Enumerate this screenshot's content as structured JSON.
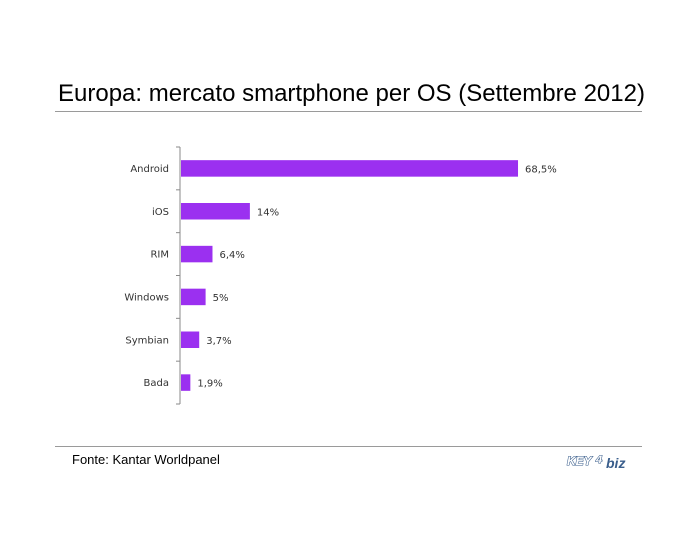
{
  "title": "Europa: mercato smartphone per OS (Settembre 2012)",
  "source": "Fonte: Kantar Worldpanel",
  "logo": {
    "text": "KEY4biz",
    "key_text": "KEY",
    "four_text": "4",
    "biz_text": "biz",
    "color": "#3a5e8c"
  },
  "chart_data": {
    "type": "bar",
    "orientation": "horizontal",
    "title": "Europa: mercato smartphone per OS (Settembre 2012)",
    "categories": [
      "Android",
      "iOS",
      "RIM",
      "Windows",
      "Symbian",
      "Bada"
    ],
    "values": [
      68.5,
      14,
      6.4,
      5,
      3.7,
      1.9
    ],
    "labels": [
      "68,5%",
      "14%",
      "6,4%",
      "5%",
      "3,7%",
      "1,9%"
    ],
    "unit": "%",
    "xlim": [
      0,
      100
    ],
    "bar_color": "#9b30f0",
    "grid": false,
    "legend": "none"
  }
}
